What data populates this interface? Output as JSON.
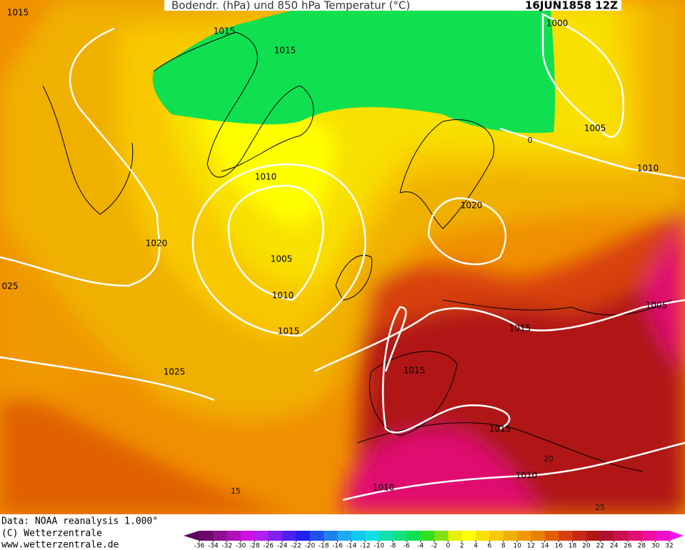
{
  "header": {
    "title": "Bodendr. (hPa) und 850 hPa Temperatur (°C)",
    "date": "16JUN1858 12Z"
  },
  "isobar_labels": [
    "1015",
    "1015",
    "1015",
    "1000",
    "1005",
    "1010",
    "1010",
    "1020",
    "1020",
    "1005",
    "1010",
    "025",
    "1015",
    "1005",
    "1015",
    "1015",
    "1025",
    "1015",
    "1010",
    "1010"
  ],
  "isotherm_labels": [
    "0",
    "15",
    "20",
    "25"
  ],
  "footer": [
    "Data: NOAA reanalysis 1.000°",
    "(C) Wetterzentrale",
    "www.wetterzentrale.de"
  ],
  "colorbar": {
    "ticks": [
      -36,
      -34,
      -32,
      -30,
      -28,
      -26,
      -24,
      -22,
      -20,
      -18,
      -16,
      -14,
      -12,
      -10,
      -8,
      -6,
      -4,
      -2,
      0,
      2,
      4,
      6,
      8,
      10,
      12,
      14,
      16,
      18,
      20,
      22,
      24,
      26,
      28,
      30,
      32
    ],
    "colors": [
      "#5a0a5a",
      "#6a0a6a",
      "#8c1090",
      "#b010b8",
      "#d010e0",
      "#b020f0",
      "#8020f0",
      "#5020f0",
      "#2020f0",
      "#2050f0",
      "#2080f0",
      "#20a8f0",
      "#10c8f0",
      "#10e0e0",
      "#10e0b0",
      "#10e080",
      "#10e050",
      "#30e020",
      "#80e010",
      "#e8f000",
      "#ffff00",
      "#f8e000",
      "#f8c800",
      "#f0b000",
      "#f09800",
      "#e88000",
      "#e06000",
      "#d84010",
      "#c82818",
      "#b01818",
      "#b01030",
      "#c81050",
      "#e01070",
      "#f010a0",
      "#f010c8",
      "#f010f0"
    ]
  }
}
